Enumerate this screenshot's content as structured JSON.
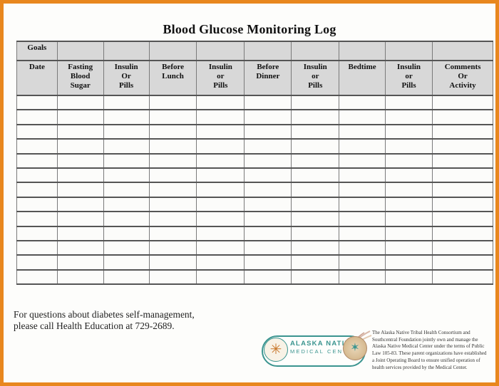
{
  "page": {
    "title": "Blood Glucose Monitoring Log",
    "border_color": "#E8871E",
    "header_bg": "#D8D8D8"
  },
  "table": {
    "goals_label": "Goals",
    "columns": [
      "Date",
      "Fasting\nBlood\nSugar",
      "Insulin\nOr\nPills",
      "Before\nLunch",
      "Insulin\nor\nPills",
      "Before\nDinner",
      "Insulin\nor\nPills",
      "Bedtime",
      "Insulin\nor\nPills",
      "Comments\nOr\nActivity"
    ],
    "row_count": 13
  },
  "footer": {
    "contact_text": "For questions about diabetes self-management,\nplease call Health Education at 729-2689."
  },
  "logo": {
    "line1": "ALASKA NATIVE",
    "line2": "MEDICAL CENTER",
    "teal": "#3A948F",
    "sun_icon": "snowflake-sun-icon",
    "compass_icon": "compass-feather-icon"
  },
  "disclaimer": {
    "text": "The Alaska Native Tribal Health Consortium and\nSouthcentral Foundation jointly own and manage the\nAlaska Native Medical Center under the terms of Public\nLaw 105-83.  These parent organizations have established\na Joint Operating Board to ensure unified operation of\nhealth services provided by the Medical Center."
  }
}
